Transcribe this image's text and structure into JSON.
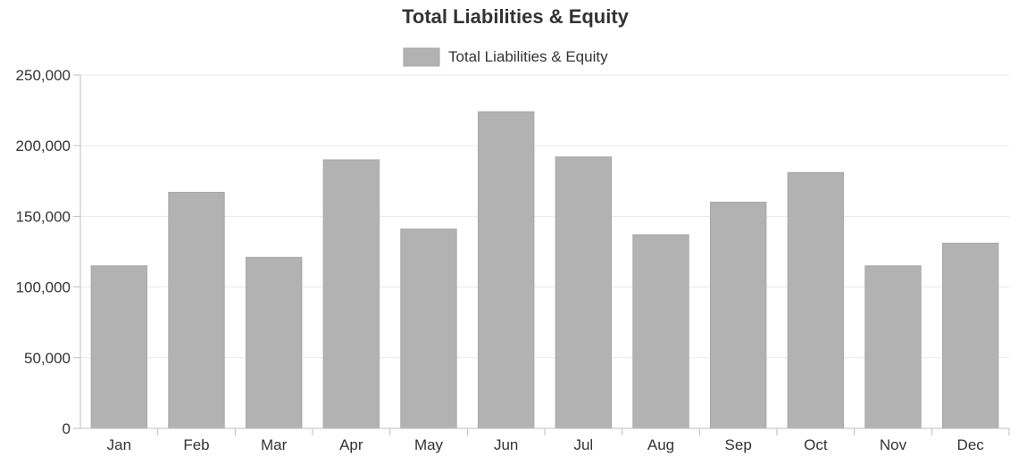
{
  "chart_data": {
    "type": "bar",
    "title": "Total Liabilities & Equity",
    "xlabel": "",
    "ylabel": "",
    "categories": [
      "Jan",
      "Feb",
      "Mar",
      "Apr",
      "May",
      "Jun",
      "Jul",
      "Aug",
      "Sep",
      "Oct",
      "Nov",
      "Dec"
    ],
    "series": [
      {
        "name": "Total Liabilities & Equity",
        "color": "#b3b2b3",
        "values": [
          115000,
          167000,
          121000,
          190000,
          141000,
          224000,
          192000,
          137000,
          160000,
          181000,
          115000,
          131000
        ]
      }
    ],
    "ylim": [
      0,
      250000
    ],
    "yticks": [
      0,
      50000,
      100000,
      150000,
      200000,
      250000
    ],
    "ytick_labels": [
      "0",
      "50,000",
      "100,000",
      "150,000",
      "200,000",
      "250,000"
    ],
    "grid": true,
    "legend_position": "top-center"
  }
}
